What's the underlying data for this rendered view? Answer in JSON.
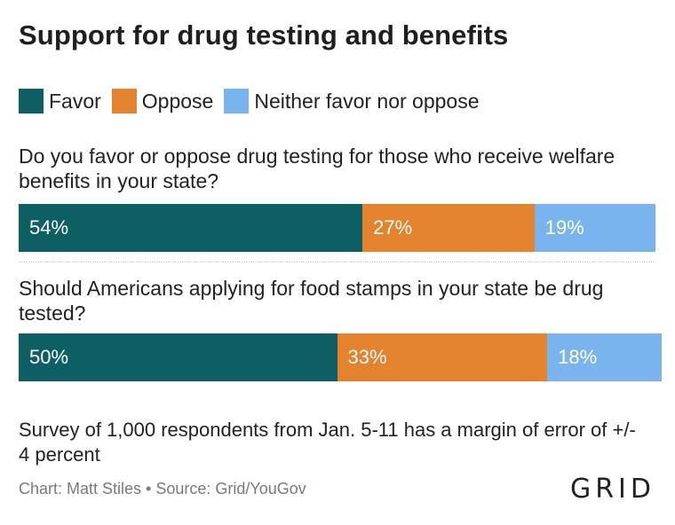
{
  "title": "Support for drug testing and benefits",
  "legend": [
    {
      "label": "Favor",
      "color": "#0d5f63"
    },
    {
      "label": "Oppose",
      "color": "#e4832e"
    },
    {
      "label": "Neither favor nor oppose",
      "color": "#7ab4ef"
    }
  ],
  "chart_data": {
    "type": "bar",
    "stacked": true,
    "orientation": "horizontal",
    "categories": [
      "Do you favor or oppose drug testing for those who receive welfare benefits in your state?",
      "Should Americans applying for food stamps in your state be drug tested?"
    ],
    "series": [
      {
        "name": "Favor",
        "values": [
          54,
          50
        ],
        "color": "#0d5f63"
      },
      {
        "name": "Oppose",
        "values": [
          27,
          33
        ],
        "color": "#e4832e"
      },
      {
        "name": "Neither favor nor oppose",
        "values": [
          19,
          18
        ],
        "color": "#7ab4ef"
      }
    ],
    "value_labels": [
      [
        "54%",
        "27%",
        "19%"
      ],
      [
        "50%",
        "33%",
        "18%"
      ]
    ],
    "xlim": [
      0,
      100
    ],
    "grid": false
  },
  "note": "Survey of 1,000 respondents from Jan. 5-11 has a margin of error of +/- 4 percent",
  "credit": "Chart: Matt Stiles • Source: Grid/YouGov",
  "logo_text": "GRID"
}
